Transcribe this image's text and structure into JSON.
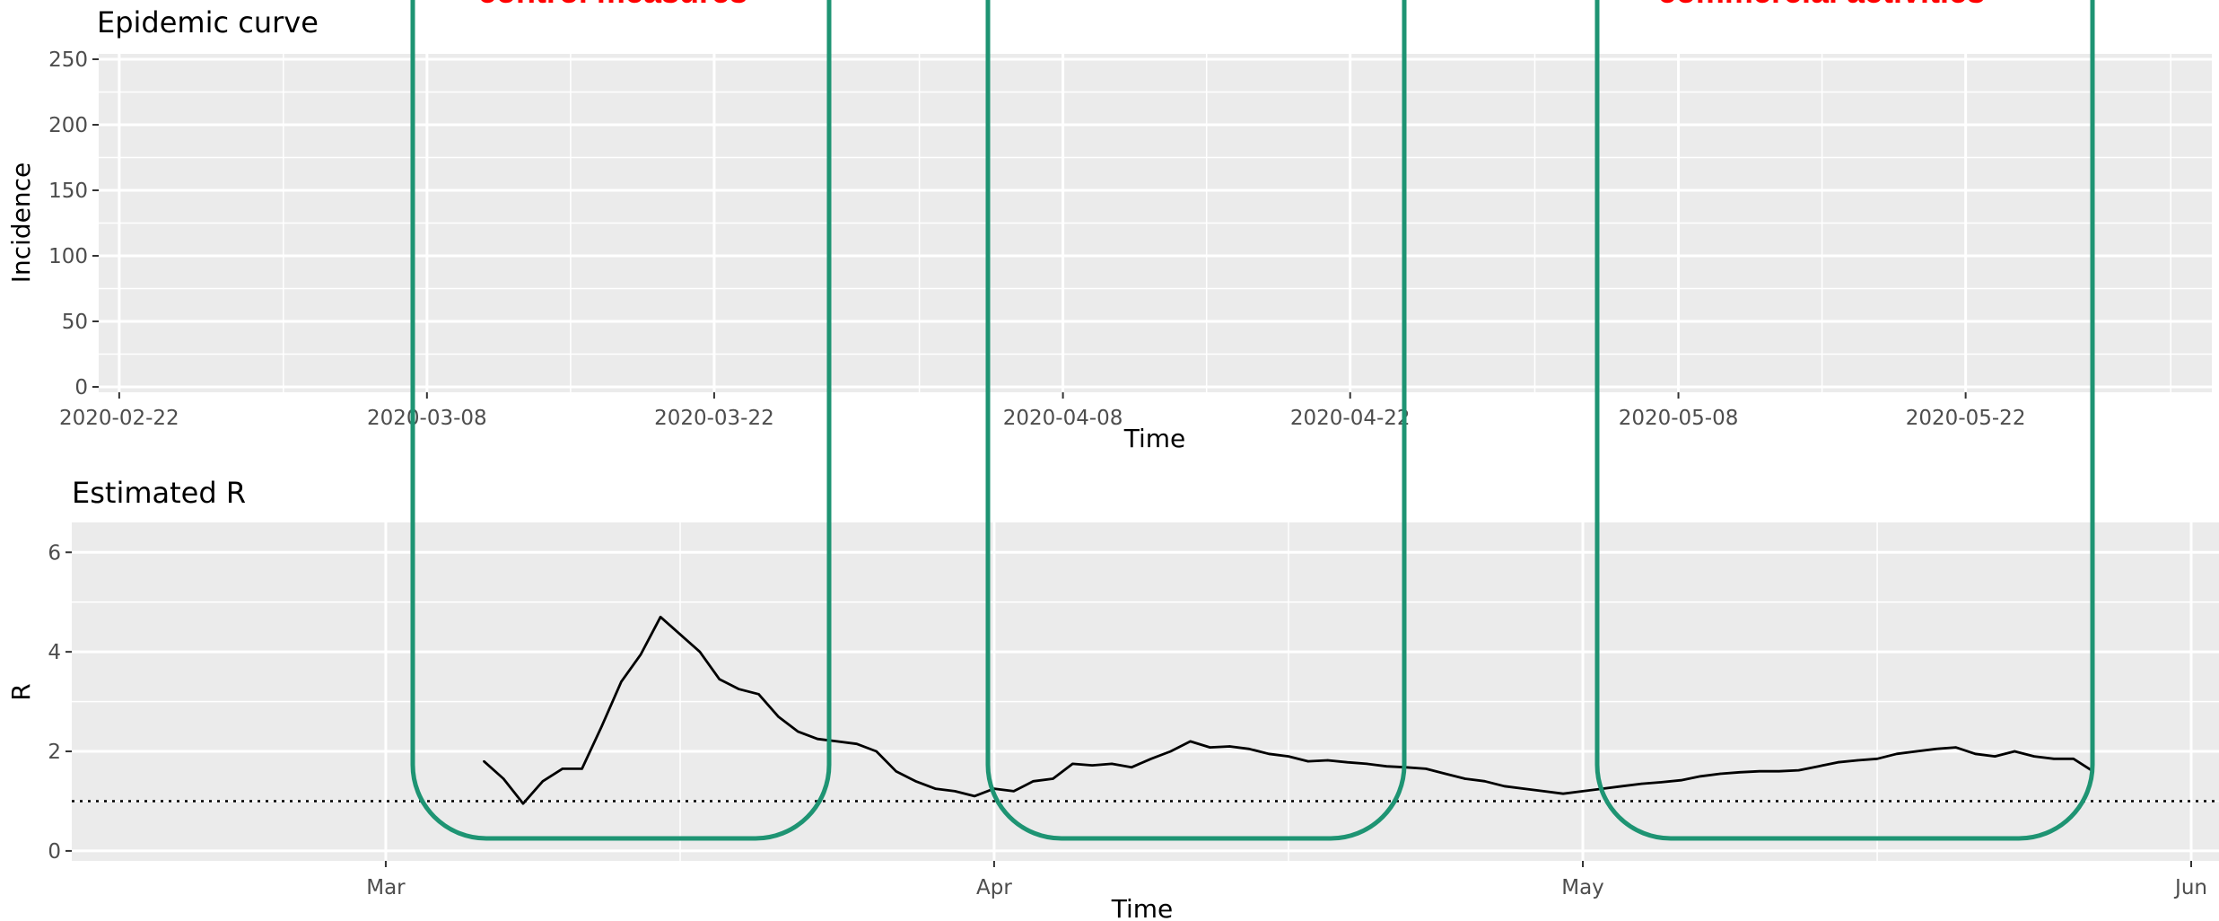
{
  "chart_data": [
    {
      "type": "bar",
      "title": "Epidemic curve",
      "xlabel": "Time",
      "ylabel": "Incidence",
      "ylim": [
        0,
        250
      ],
      "yticks": [
        0,
        50,
        100,
        150,
        200,
        250
      ],
      "xlim": [
        "2020-02-21",
        "2020-06-03"
      ],
      "xticks": [
        "2020-02-22",
        "2020-03-08",
        "2020-03-22",
        "2020-04-08",
        "2020-04-22",
        "2020-05-08",
        "2020-05-22"
      ],
      "xminor": [
        "2020-03-01",
        "2020-03-15",
        "2020-04-01",
        "2020-04-15",
        "2020-05-01",
        "2020-05-15",
        "2020-06-01"
      ],
      "values": [],
      "grid": true
    },
    {
      "type": "line",
      "title": "Estimated R",
      "xlabel": "Time",
      "ylabel": "R",
      "ylim": [
        -0.2,
        6.6
      ],
      "yticks": [
        0,
        2,
        4,
        6
      ],
      "xlim": [
        "2020-02-14",
        "2020-06-01"
      ],
      "xticks": [
        "Mar",
        "Apr",
        "May",
        "Jun"
      ],
      "xtick_dates": [
        "2020-03-01",
        "2020-04-01",
        "2020-05-01",
        "2020-06-01"
      ],
      "xminor": [
        "2020-03-16",
        "2020-04-16",
        "2020-05-16"
      ],
      "reference_line": {
        "y": 1,
        "style": "dotted"
      },
      "grid": true,
      "series": [
        {
          "x": [
            "2020-03-06",
            "2020-03-07",
            "2020-03-08",
            "2020-03-09",
            "2020-03-10",
            "2020-03-11",
            "2020-03-12",
            "2020-03-13",
            "2020-03-14",
            "2020-03-15",
            "2020-03-16",
            "2020-03-17",
            "2020-03-18",
            "2020-03-19",
            "2020-03-20",
            "2020-03-21",
            "2020-03-22",
            "2020-03-23",
            "2020-03-24",
            "2020-03-25",
            "2020-03-26",
            "2020-03-27",
            "2020-03-28",
            "2020-03-29",
            "2020-03-30",
            "2020-03-31",
            "2020-04-01",
            "2020-04-02",
            "2020-04-03",
            "2020-04-04",
            "2020-04-05",
            "2020-04-06",
            "2020-04-07",
            "2020-04-08",
            "2020-04-09",
            "2020-04-10",
            "2020-04-11",
            "2020-04-12",
            "2020-04-13",
            "2020-04-14",
            "2020-04-15",
            "2020-04-16",
            "2020-04-17",
            "2020-04-18",
            "2020-04-19",
            "2020-04-20",
            "2020-04-21",
            "2020-04-22",
            "2020-04-23",
            "2020-04-24",
            "2020-04-25",
            "2020-04-26",
            "2020-04-27",
            "2020-04-28",
            "2020-04-29",
            "2020-04-30",
            "2020-05-01",
            "2020-05-02",
            "2020-05-03",
            "2020-05-04",
            "2020-05-05",
            "2020-05-06",
            "2020-05-07",
            "2020-05-08",
            "2020-05-09",
            "2020-05-10",
            "2020-05-11",
            "2020-05-12",
            "2020-05-13",
            "2020-05-14",
            "2020-05-15",
            "2020-05-16",
            "2020-05-17",
            "2020-05-18",
            "2020-05-19",
            "2020-05-20",
            "2020-05-21",
            "2020-05-22",
            "2020-05-23",
            "2020-05-24",
            "2020-05-25",
            "2020-05-26",
            "2020-05-27"
          ],
          "values": [
            1.8,
            1.45,
            0.95,
            1.4,
            1.65,
            1.65,
            2.5,
            3.4,
            3.95,
            4.7,
            4.35,
            4.0,
            3.45,
            3.25,
            3.15,
            2.7,
            2.4,
            2.25,
            2.2,
            2.15,
            2.0,
            1.6,
            1.4,
            1.25,
            1.2,
            1.1,
            1.25,
            1.2,
            1.4,
            1.45,
            1.75,
            1.72,
            1.75,
            1.68,
            1.85,
            2.0,
            2.2,
            2.08,
            2.1,
            2.05,
            1.95,
            1.9,
            1.8,
            1.82,
            1.78,
            1.75,
            1.7,
            1.68,
            1.65,
            1.55,
            1.45,
            1.4,
            1.3,
            1.25,
            1.2,
            1.15,
            1.2,
            1.25,
            1.3,
            1.35,
            1.38,
            1.42,
            1.5,
            1.55,
            1.58,
            1.6,
            1.6,
            1.62,
            1.7,
            1.78,
            1.82,
            1.85,
            1.95,
            2.0,
            2.05,
            2.08,
            1.95,
            1.9,
            2.0,
            1.9,
            1.85,
            1.85,
            1.6
          ]
        }
      ]
    }
  ],
  "annotations": {
    "labels": [
      "control measures",
      "commercial activities"
    ],
    "box_color": "#1e9473",
    "label_color": "#ff0000"
  },
  "panel_background": "#ebebeb",
  "grid_color": "#ffffff"
}
